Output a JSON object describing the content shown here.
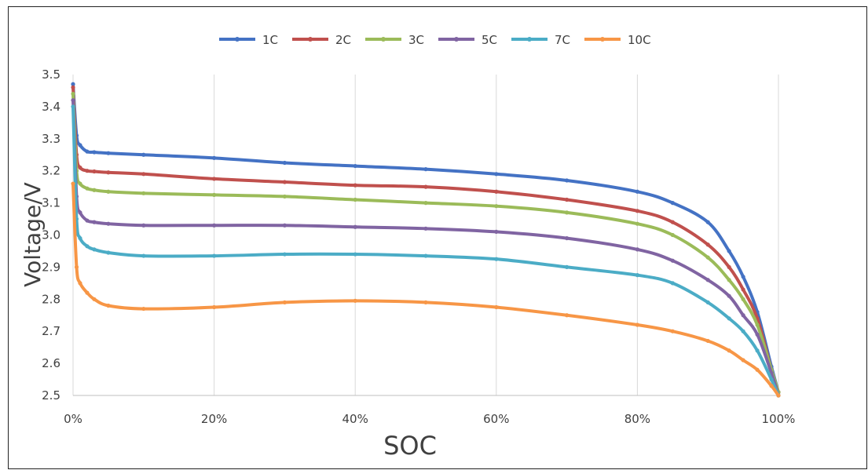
{
  "chart_data": {
    "type": "line",
    "xlabel": "SOC",
    "ylabel": "Voltage/V",
    "xlim": [
      0,
      100
    ],
    "ylim": [
      2.5,
      3.5
    ],
    "x_ticks": [
      "0%",
      "20%",
      "40%",
      "60%",
      "80%",
      "100%"
    ],
    "x_tick_values": [
      0,
      20,
      40,
      60,
      80,
      100
    ],
    "y_ticks": [
      "2.5",
      "2.6",
      "2.7",
      "2.8",
      "2.9",
      "3.0",
      "3.1",
      "3.2",
      "3.3",
      "3.4",
      "3.5"
    ],
    "y_tick_values": [
      2.5,
      2.6,
      2.7,
      2.8,
      2.9,
      3.0,
      3.1,
      3.2,
      3.3,
      3.4,
      3.5
    ],
    "grid": "vertical",
    "legend_position": "top",
    "x": [
      0,
      0.5,
      1,
      2,
      3,
      5,
      10,
      20,
      30,
      40,
      50,
      60,
      70,
      80,
      85,
      90,
      93,
      95,
      97,
      99,
      100
    ],
    "series": [
      {
        "name": "1C",
        "color": "#4472C4",
        "values": [
          3.47,
          3.31,
          3.28,
          3.26,
          3.258,
          3.255,
          3.25,
          3.24,
          3.225,
          3.215,
          3.205,
          3.19,
          3.17,
          3.135,
          3.1,
          3.04,
          2.95,
          2.87,
          2.76,
          2.59,
          2.51
        ]
      },
      {
        "name": "2C",
        "color": "#C0504D",
        "values": [
          3.46,
          3.25,
          3.21,
          3.2,
          3.198,
          3.195,
          3.19,
          3.175,
          3.165,
          3.155,
          3.15,
          3.135,
          3.11,
          3.075,
          3.04,
          2.97,
          2.9,
          2.83,
          2.74,
          2.58,
          2.51
        ]
      },
      {
        "name": "3C",
        "color": "#9BBB59",
        "values": [
          3.44,
          3.2,
          3.16,
          3.145,
          3.14,
          3.135,
          3.13,
          3.125,
          3.12,
          3.11,
          3.1,
          3.09,
          3.07,
          3.035,
          3.0,
          2.93,
          2.86,
          2.8,
          2.72,
          2.58,
          2.51
        ]
      },
      {
        "name": "5C",
        "color": "#8064A2",
        "values": [
          3.42,
          3.12,
          3.07,
          3.045,
          3.04,
          3.035,
          3.03,
          3.03,
          3.03,
          3.025,
          3.02,
          3.01,
          2.99,
          2.955,
          2.92,
          2.86,
          2.81,
          2.75,
          2.69,
          2.57,
          2.5
        ]
      },
      {
        "name": "7C",
        "color": "#4BACC6",
        "values": [
          3.4,
          3.05,
          2.99,
          2.965,
          2.955,
          2.945,
          2.935,
          2.935,
          2.94,
          2.94,
          2.935,
          2.925,
          2.9,
          2.875,
          2.85,
          2.79,
          2.74,
          2.7,
          2.64,
          2.55,
          2.5
        ]
      },
      {
        "name": "10C",
        "color": "#F79646",
        "values": [
          3.16,
          2.9,
          2.85,
          2.82,
          2.8,
          2.78,
          2.77,
          2.775,
          2.79,
          2.795,
          2.79,
          2.775,
          2.75,
          2.72,
          2.7,
          2.67,
          2.64,
          2.61,
          2.58,
          2.53,
          2.5
        ]
      }
    ]
  }
}
